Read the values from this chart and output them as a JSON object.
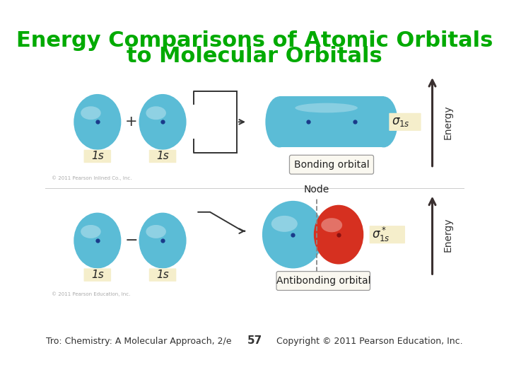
{
  "title_line1": "Energy Comparisons of Atomic Orbitals",
  "title_line2": "to Molecular Orbitals",
  "title_color": "#00aa00",
  "title_fontsize": 22,
  "bg_color": "#ffffff",
  "teal_color": "#5bbcd6",
  "teal_dark": "#3a9ab8",
  "red_color": "#d63020",
  "dark_color": "#3a3030",
  "footer_left": "Tro: Chemistry: A Molecular Approach, 2/e",
  "footer_center": "57",
  "footer_right": "Copyright © 2011 Pearson Education, Inc.",
  "footer_fontsize": 9,
  "bonding_label": "Bonding orbital",
  "antibonding_label": "Antibonding orbital",
  "node_label": "Node",
  "energy_label": "Energy",
  "plus_sign": "+",
  "minus_sign": "−",
  "label_1s": "1s",
  "copyright_top": "© 2011 Pearson Inlined Co., Inc.",
  "copyright_bot": "© 2011 Pearson Education, Inc.",
  "figw": 7.2,
  "figh": 5.4,
  "dpi": 100
}
